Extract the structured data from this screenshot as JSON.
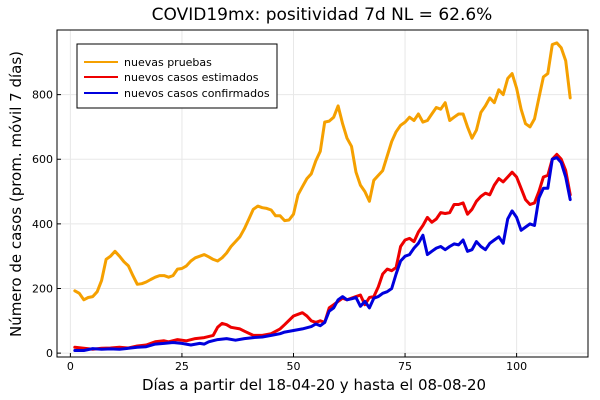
{
  "chart_data": {
    "type": "line",
    "title": "COVID19mx: positividad 7d NL = 62.6%",
    "xlabel": "Días a partir del 18-04-20 y hasta el 08-08-20",
    "ylabel": "Número de casos (prom. móvil 7 días)",
    "xlim": [
      -3,
      116
    ],
    "ylim": [
      -12,
      1000
    ],
    "xticks": [
      0,
      25,
      50,
      75,
      100
    ],
    "yticks": [
      0,
      200,
      400,
      600,
      800
    ],
    "grid": true,
    "legend_position": "top-left",
    "series": [
      {
        "name": "nuevas pruebas",
        "color": "#f5a000",
        "points": [
          [
            1,
            193
          ],
          [
            2,
            185
          ],
          [
            3,
            165
          ],
          [
            4,
            172
          ],
          [
            5,
            175
          ],
          [
            6,
            190
          ],
          [
            7,
            225
          ],
          [
            8,
            290
          ],
          [
            9,
            300
          ],
          [
            10,
            315
          ],
          [
            11,
            300
          ],
          [
            12,
            283
          ],
          [
            13,
            270
          ],
          [
            14,
            240
          ],
          [
            15,
            213
          ],
          [
            16,
            215
          ],
          [
            17,
            220
          ],
          [
            18,
            228
          ],
          [
            19,
            235
          ],
          [
            20,
            240
          ],
          [
            21,
            240
          ],
          [
            22,
            235
          ],
          [
            23,
            240
          ],
          [
            24,
            260
          ],
          [
            25,
            262
          ],
          [
            26,
            270
          ],
          [
            27,
            285
          ],
          [
            28,
            295
          ],
          [
            29,
            300
          ],
          [
            30,
            305
          ],
          [
            31,
            298
          ],
          [
            32,
            290
          ],
          [
            33,
            285
          ],
          [
            34,
            295
          ],
          [
            35,
            310
          ],
          [
            36,
            330
          ],
          [
            37,
            345
          ],
          [
            38,
            360
          ],
          [
            39,
            385
          ],
          [
            40,
            415
          ],
          [
            41,
            445
          ],
          [
            42,
            455
          ],
          [
            43,
            450
          ],
          [
            44,
            448
          ],
          [
            45,
            443
          ],
          [
            46,
            425
          ],
          [
            47,
            425
          ],
          [
            48,
            410
          ],
          [
            49,
            412
          ],
          [
            50,
            430
          ],
          [
            51,
            490
          ],
          [
            52,
            515
          ],
          [
            53,
            540
          ],
          [
            54,
            555
          ],
          [
            55,
            595
          ],
          [
            56,
            625
          ],
          [
            57,
            715
          ],
          [
            58,
            718
          ],
          [
            59,
            730
          ],
          [
            60,
            765
          ],
          [
            61,
            710
          ],
          [
            62,
            665
          ],
          [
            63,
            640
          ],
          [
            64,
            560
          ],
          [
            65,
            520
          ],
          [
            66,
            500
          ],
          [
            67,
            470
          ],
          [
            68,
            535
          ],
          [
            69,
            550
          ],
          [
            70,
            565
          ],
          [
            71,
            610
          ],
          [
            72,
            655
          ],
          [
            73,
            685
          ],
          [
            74,
            705
          ],
          [
            75,
            715
          ],
          [
            76,
            730
          ],
          [
            77,
            720
          ],
          [
            78,
            740
          ],
          [
            79,
            715
          ],
          [
            80,
            720
          ],
          [
            81,
            740
          ],
          [
            82,
            760
          ],
          [
            83,
            755
          ],
          [
            84,
            775
          ],
          [
            85,
            720
          ],
          [
            86,
            730
          ],
          [
            87,
            740
          ],
          [
            88,
            740
          ],
          [
            89,
            700
          ],
          [
            90,
            665
          ],
          [
            91,
            690
          ],
          [
            92,
            745
          ],
          [
            93,
            765
          ],
          [
            94,
            790
          ],
          [
            95,
            775
          ],
          [
            96,
            815
          ],
          [
            97,
            800
          ],
          [
            98,
            850
          ],
          [
            99,
            865
          ],
          [
            100,
            820
          ],
          [
            101,
            755
          ],
          [
            102,
            710
          ],
          [
            103,
            700
          ],
          [
            104,
            725
          ],
          [
            105,
            790
          ],
          [
            106,
            855
          ],
          [
            107,
            865
          ],
          [
            108,
            955
          ],
          [
            109,
            960
          ],
          [
            110,
            945
          ],
          [
            111,
            905
          ],
          [
            112,
            790
          ]
        ]
      },
      {
        "name": "nuevos casos estimados",
        "color": "#ee0000",
        "points": [
          [
            1,
            18
          ],
          [
            3,
            15
          ],
          [
            5,
            12
          ],
          [
            7,
            15
          ],
          [
            9,
            16
          ],
          [
            11,
            18
          ],
          [
            13,
            16
          ],
          [
            15,
            22
          ],
          [
            17,
            25
          ],
          [
            19,
            35
          ],
          [
            21,
            38
          ],
          [
            22,
            35
          ],
          [
            24,
            42
          ],
          [
            26,
            38
          ],
          [
            28,
            45
          ],
          [
            30,
            48
          ],
          [
            32,
            55
          ],
          [
            33,
            80
          ],
          [
            34,
            92
          ],
          [
            35,
            88
          ],
          [
            36,
            80
          ],
          [
            38,
            75
          ],
          [
            39,
            68
          ],
          [
            41,
            55
          ],
          [
            43,
            55
          ],
          [
            45,
            60
          ],
          [
            47,
            75
          ],
          [
            48,
            88
          ],
          [
            50,
            115
          ],
          [
            51,
            120
          ],
          [
            52,
            125
          ],
          [
            53,
            115
          ],
          [
            54,
            100
          ],
          [
            55,
            95
          ],
          [
            56,
            100
          ],
          [
            57,
            95
          ],
          [
            58,
            140
          ],
          [
            59,
            150
          ],
          [
            60,
            160
          ],
          [
            61,
            170
          ],
          [
            62,
            165
          ],
          [
            63,
            170
          ],
          [
            64,
            175
          ],
          [
            65,
            180
          ],
          [
            66,
            150
          ],
          [
            67,
            172
          ],
          [
            68,
            175
          ],
          [
            69,
            205
          ],
          [
            70,
            245
          ],
          [
            71,
            260
          ],
          [
            72,
            255
          ],
          [
            73,
            265
          ],
          [
            74,
            330
          ],
          [
            75,
            350
          ],
          [
            76,
            355
          ],
          [
            77,
            345
          ],
          [
            78,
            375
          ],
          [
            79,
            395
          ],
          [
            80,
            420
          ],
          [
            81,
            405
          ],
          [
            82,
            415
          ],
          [
            83,
            435
          ],
          [
            84,
            432
          ],
          [
            85,
            435
          ],
          [
            86,
            460
          ],
          [
            87,
            460
          ],
          [
            88,
            465
          ],
          [
            89,
            430
          ],
          [
            90,
            445
          ],
          [
            91,
            470
          ],
          [
            92,
            485
          ],
          [
            93,
            495
          ],
          [
            94,
            490
          ],
          [
            95,
            520
          ],
          [
            96,
            540
          ],
          [
            97,
            530
          ],
          [
            98,
            545
          ],
          [
            99,
            560
          ],
          [
            100,
            545
          ],
          [
            101,
            510
          ],
          [
            102,
            475
          ],
          [
            103,
            460
          ],
          [
            104,
            465
          ],
          [
            105,
            500
          ],
          [
            106,
            545
          ],
          [
            107,
            550
          ],
          [
            108,
            600
          ],
          [
            109,
            615
          ],
          [
            110,
            600
          ],
          [
            111,
            565
          ],
          [
            112,
            490
          ]
        ]
      },
      {
        "name": "nuevos casos confirmados",
        "color": "#0000dd",
        "points": [
          [
            1,
            8
          ],
          [
            3,
            8
          ],
          [
            5,
            14
          ],
          [
            7,
            12
          ],
          [
            9,
            13
          ],
          [
            11,
            12
          ],
          [
            13,
            15
          ],
          [
            15,
            18
          ],
          [
            17,
            20
          ],
          [
            19,
            28
          ],
          [
            21,
            30
          ],
          [
            23,
            33
          ],
          [
            25,
            30
          ],
          [
            27,
            25
          ],
          [
            29,
            30
          ],
          [
            30,
            28
          ],
          [
            31,
            35
          ],
          [
            33,
            42
          ],
          [
            35,
            45
          ],
          [
            37,
            40
          ],
          [
            39,
            45
          ],
          [
            41,
            48
          ],
          [
            43,
            50
          ],
          [
            45,
            55
          ],
          [
            47,
            60
          ],
          [
            48,
            65
          ],
          [
            50,
            70
          ],
          [
            52,
            75
          ],
          [
            54,
            82
          ],
          [
            55,
            90
          ],
          [
            56,
            85
          ],
          [
            57,
            95
          ],
          [
            58,
            130
          ],
          [
            59,
            140
          ],
          [
            60,
            165
          ],
          [
            61,
            175
          ],
          [
            62,
            165
          ],
          [
            63,
            168
          ],
          [
            64,
            172
          ],
          [
            65,
            145
          ],
          [
            66,
            160
          ],
          [
            67,
            140
          ],
          [
            68,
            170
          ],
          [
            69,
            175
          ],
          [
            70,
            185
          ],
          [
            71,
            190
          ],
          [
            72,
            200
          ],
          [
            73,
            245
          ],
          [
            74,
            285
          ],
          [
            75,
            300
          ],
          [
            76,
            305
          ],
          [
            77,
            325
          ],
          [
            78,
            340
          ],
          [
            79,
            365
          ],
          [
            80,
            305
          ],
          [
            81,
            315
          ],
          [
            82,
            325
          ],
          [
            83,
            330
          ],
          [
            84,
            320
          ],
          [
            85,
            330
          ],
          [
            86,
            338
          ],
          [
            87,
            335
          ],
          [
            88,
            350
          ],
          [
            89,
            315
          ],
          [
            90,
            320
          ],
          [
            91,
            345
          ],
          [
            92,
            330
          ],
          [
            93,
            320
          ],
          [
            94,
            340
          ],
          [
            95,
            350
          ],
          [
            96,
            360
          ],
          [
            97,
            340
          ],
          [
            98,
            415
          ],
          [
            99,
            440
          ],
          [
            100,
            420
          ],
          [
            101,
            380
          ],
          [
            102,
            390
          ],
          [
            103,
            400
          ],
          [
            104,
            395
          ],
          [
            105,
            480
          ],
          [
            106,
            510
          ],
          [
            107,
            510
          ],
          [
            108,
            600
          ],
          [
            109,
            605
          ],
          [
            110,
            590
          ],
          [
            111,
            545
          ],
          [
            112,
            475
          ]
        ]
      }
    ]
  }
}
